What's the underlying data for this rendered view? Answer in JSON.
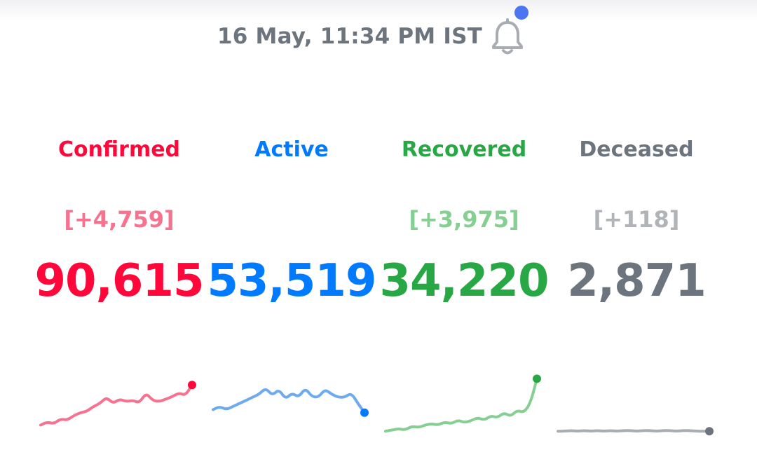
{
  "header": {
    "timestamp": "16 May, 11:34 PM IST",
    "bell_icon": "bell-icon",
    "notification_dot_color": "#4c75f2"
  },
  "stats": [
    {
      "key": "confirmed",
      "label": "Confirmed",
      "delta": "[+4,759]",
      "total": "90,615",
      "color": "#ff073a",
      "delta_color": "#f7728f",
      "line_color": "#f7728f",
      "trend": [
        0.2,
        0.25,
        0.22,
        0.3,
        0.28,
        0.35,
        0.4,
        0.42,
        0.5,
        0.55,
        0.65,
        0.55,
        0.62,
        0.58,
        0.6,
        0.56,
        0.72,
        0.6,
        0.58,
        0.62,
        0.66,
        0.72,
        0.68,
        0.85
      ]
    },
    {
      "key": "active",
      "label": "Active",
      "delta": "",
      "total": "53,519",
      "color": "#007bff",
      "delta_color": "#7fb8f6",
      "line_color": "#6eaaf0",
      "trend": [
        0.45,
        0.5,
        0.45,
        0.5,
        0.55,
        0.6,
        0.65,
        0.7,
        0.8,
        0.68,
        0.78,
        0.62,
        0.72,
        0.65,
        0.8,
        0.66,
        0.65,
        0.78,
        0.7,
        0.65,
        0.65,
        0.72,
        0.55,
        0.4
      ]
    },
    {
      "key": "recovered",
      "label": "Recovered",
      "delta": "[+3,975]",
      "total": "34,220",
      "color": "#28a745",
      "delta_color": "#86cf93",
      "line_color": "#86cf93",
      "trend": [
        0.1,
        0.12,
        0.14,
        0.12,
        0.18,
        0.16,
        0.2,
        0.22,
        0.2,
        0.25,
        0.22,
        0.28,
        0.24,
        0.27,
        0.32,
        0.28,
        0.35,
        0.32,
        0.4,
        0.34,
        0.44,
        0.4,
        0.55,
        0.95
      ]
    },
    {
      "key": "deceased",
      "label": "Deceased",
      "delta": "[+118]",
      "total": "2,871",
      "color": "#6c757d",
      "delta_color": "#b0b4b9",
      "line_color": "#a9adb2",
      "trend": [
        0.1,
        0.1,
        0.11,
        0.1,
        0.11,
        0.1,
        0.11,
        0.1,
        0.11,
        0.1,
        0.11,
        0.11,
        0.1,
        0.11,
        0.11,
        0.1,
        0.11,
        0.11,
        0.1,
        0.11,
        0.11,
        0.1,
        0.1,
        0.1
      ]
    }
  ]
}
